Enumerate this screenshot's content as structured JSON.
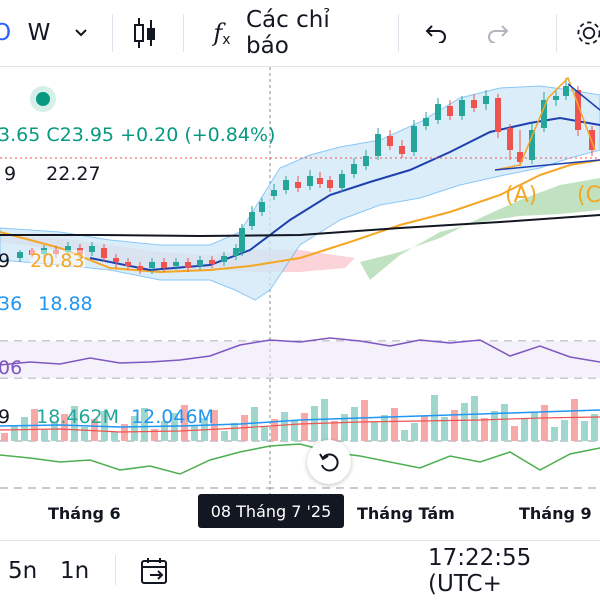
{
  "toolbar": {
    "interval": "W",
    "indicators_label": "Các chỉ báo"
  },
  "legend": {
    "close_prefix_partial": "3.65",
    "close_label": "C23.95",
    "change": "+0.20 (+0.84%)",
    "row2_partial": "9",
    "row2_value": "22.27",
    "ma_value": "20.83",
    "ma_prefix_partial": "9",
    "bb_lower_partial": "36",
    "bb_lower_value": "18.88",
    "osc_value_partial": "06",
    "vol_partial": "9",
    "vol_value1": "18.462M",
    "vol_value2": "12.046M"
  },
  "waves": {
    "a": "(A)",
    "c": "(C"
  },
  "xaxis": {
    "labels": [
      "Tháng 6",
      "Tháng Tám",
      "Tháng 9"
    ],
    "crosshair": "08 Tháng 7 '25"
  },
  "bottom": {
    "range_5n": "5n",
    "range_1n": "1n",
    "clock": "17:22:55 (UTC+"
  },
  "colors": {
    "up": "#26a69a",
    "down": "#ef5350",
    "bb": "#64b5f6",
    "ma_orange": "#f5a623",
    "ma_blue": "#1e40af",
    "ma_black": "#131722",
    "osc": "#7e57c2",
    "green_line": "#4caf50"
  }
}
